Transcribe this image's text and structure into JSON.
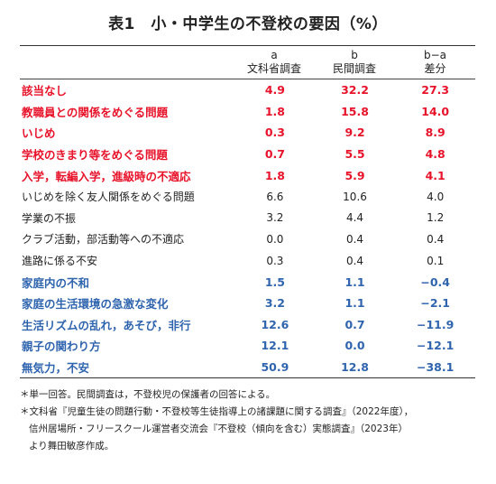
{
  "title": "表1　小・中学生の不登校の要因（%）",
  "headers": [
    {
      "letter": "a",
      "label": "文科省調査"
    },
    {
      "letter": "b",
      "label": "民間調査"
    },
    {
      "letter": "b−a",
      "label": "差分"
    }
  ],
  "rows": [
    {
      "label": "該当なし",
      "a": "4.9",
      "b": "32.2",
      "diff": "27.3",
      "color": "red"
    },
    {
      "label": "教職員との関係をめぐる問題",
      "a": "1.8",
      "b": "15.8",
      "diff": "14.0",
      "color": "red"
    },
    {
      "label": "いじめ",
      "a": "0.3",
      "b": "9.2",
      "diff": "8.9",
      "color": "red"
    },
    {
      "label": "学校のきまり等をめぐる問題",
      "a": "0.7",
      "b": "5.5",
      "diff": "4.8",
      "color": "red"
    },
    {
      "label": "入学，転編入学，進級時の不適応",
      "a": "1.8",
      "b": "5.9",
      "diff": "4.1",
      "color": "red"
    },
    {
      "label": "いじめを除く友人関係をめぐる問題",
      "a": "6.6",
      "b": "10.6",
      "diff": "4.0",
      "color": "plain"
    },
    {
      "label": "学業の不振",
      "a": "3.2",
      "b": "4.4",
      "diff": "1.2",
      "color": "plain"
    },
    {
      "label": "クラブ活動，部活動等への不適応",
      "a": "0.0",
      "b": "0.4",
      "diff": "0.4",
      "color": "plain"
    },
    {
      "label": "進路に係る不安",
      "a": "0.3",
      "b": "0.4",
      "diff": "0.1",
      "color": "plain"
    },
    {
      "label": "家庭内の不和",
      "a": "1.5",
      "b": "1.1",
      "diff": "−0.4",
      "color": "blue"
    },
    {
      "label": "家庭の生活環境の急激な変化",
      "a": "3.2",
      "b": "1.1",
      "diff": "−2.1",
      "color": "blue"
    },
    {
      "label": "生活リズムの乱れ，あそび，非行",
      "a": "12.6",
      "b": "0.7",
      "diff": "−11.9",
      "color": "blue"
    },
    {
      "label": "親子の関わり方",
      "a": "12.1",
      "b": "0.0",
      "diff": "−12.1",
      "color": "blue"
    },
    {
      "label": "無気力，不安",
      "a": "50.9",
      "b": "12.8",
      "diff": "−38.1",
      "color": "blue"
    }
  ],
  "notes": [
    "＊単一回答。民間調査は，不登校児の保護者の回答による。",
    "＊文科省『児童生徒の問題行動・不登校等生徒指導上の諸課題に関する調査』（2022年度），",
    "信州居場所・フリースクール運営者交流会『不登校（傾向を含む）実態調査』（2023年）",
    "より舞田敏彦作成。"
  ],
  "colors": {
    "red": "#e8132a",
    "blue": "#2f64ae",
    "text": "#222222"
  }
}
